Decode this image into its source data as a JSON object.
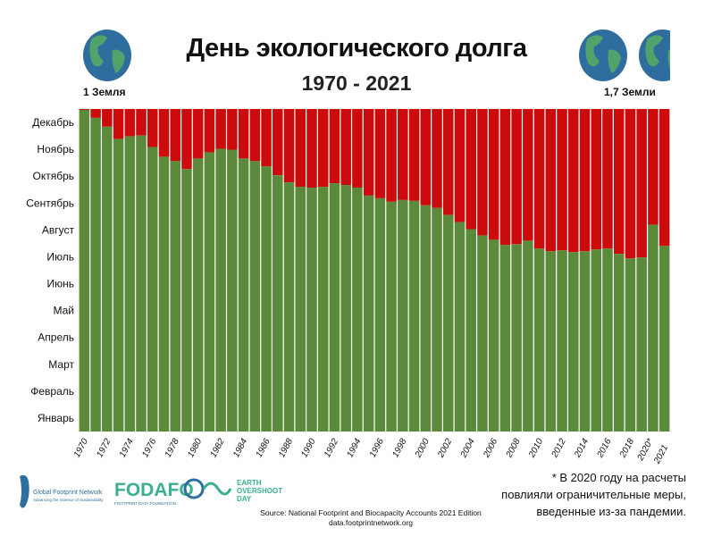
{
  "header": {
    "title": "День экологического долга",
    "subtitle": "1970 - 2021",
    "left_label": "1 Земля",
    "right_label": "1,7 Земли"
  },
  "colors": {
    "green": "#5b8a3a",
    "red": "#cc0c0c",
    "earth_blue": "#2f6d9e",
    "earth_green": "#4fa36b"
  },
  "chart_data": {
    "type": "bar",
    "stacked": true,
    "title": "День экологического долга",
    "subtitle": "1970 - 2021",
    "y_unit": "day of year",
    "ylim": [
      0,
      365
    ],
    "y_tick_labels": [
      "Январь",
      "Февраль",
      "Март",
      "Апрель",
      "Май",
      "Июнь",
      "Июль",
      "Август",
      "Сентябрь",
      "Октябрь",
      "Ноябрь",
      "Декабрь"
    ],
    "x": [
      1970,
      1971,
      1972,
      1973,
      1974,
      1975,
      1976,
      1977,
      1978,
      1979,
      1980,
      1981,
      1982,
      1983,
      1984,
      1985,
      1986,
      1987,
      1988,
      1989,
      1990,
      1991,
      1992,
      1993,
      1994,
      1995,
      1996,
      1997,
      1998,
      1999,
      2000,
      2001,
      2002,
      2003,
      2004,
      2005,
      2006,
      2007,
      2008,
      2009,
      2010,
      2011,
      2012,
      2013,
      2014,
      2015,
      2016,
      2017,
      2018,
      2019,
      2020,
      2021
    ],
    "x_tick_labels": [
      "1970",
      "1972",
      "1974",
      "1976",
      "1978",
      "1980",
      "1982",
      "1984",
      "1986",
      "1988",
      "1990",
      "1992",
      "1994",
      "1996",
      "1998",
      "2000",
      "2002",
      "2004",
      "2006",
      "2008",
      "2010",
      "2012",
      "2014",
      "2016",
      "2018",
      "2020*",
      "2021"
    ],
    "series": [
      {
        "name": "overshoot_day",
        "color": "#5b8a3a",
        "values": [
          364,
          355,
          345,
          331,
          334,
          335,
          322,
          311,
          306,
          297,
          309,
          316,
          320,
          319,
          309,
          306,
          300,
          290,
          282,
          277,
          276,
          277,
          281,
          279,
          276,
          267,
          264,
          260,
          262,
          261,
          256,
          253,
          245,
          237,
          229,
          222,
          217,
          211,
          212,
          216,
          207,
          204,
          205,
          203,
          204,
          206,
          207,
          201,
          196,
          197,
          234,
          210
        ]
      },
      {
        "name": "remainder",
        "color": "#cc0c0c",
        "values_are": "365 minus overshoot_day"
      }
    ]
  },
  "footer": {
    "note_lines": [
      "* В 2020 году на расчеты",
      "повлияли ограничительные меры,",
      "введенные из-за пандемии."
    ],
    "source_lines": [
      "Source: National Footprint and Biocapacity Accounts 2021 Edition",
      "data.footprintnetwork.org"
    ],
    "logo_gfn": "Global Footprint Network",
    "logo_gfn_tag": "Advancing the Science of Sustainability",
    "logo_fodafo": "FODAFO",
    "logo_fodafo_tag": "FOOTPRINT DATA FOUNDATION",
    "logo_eod": [
      "EARTH",
      "OVERSHOOT",
      "DAY"
    ]
  }
}
